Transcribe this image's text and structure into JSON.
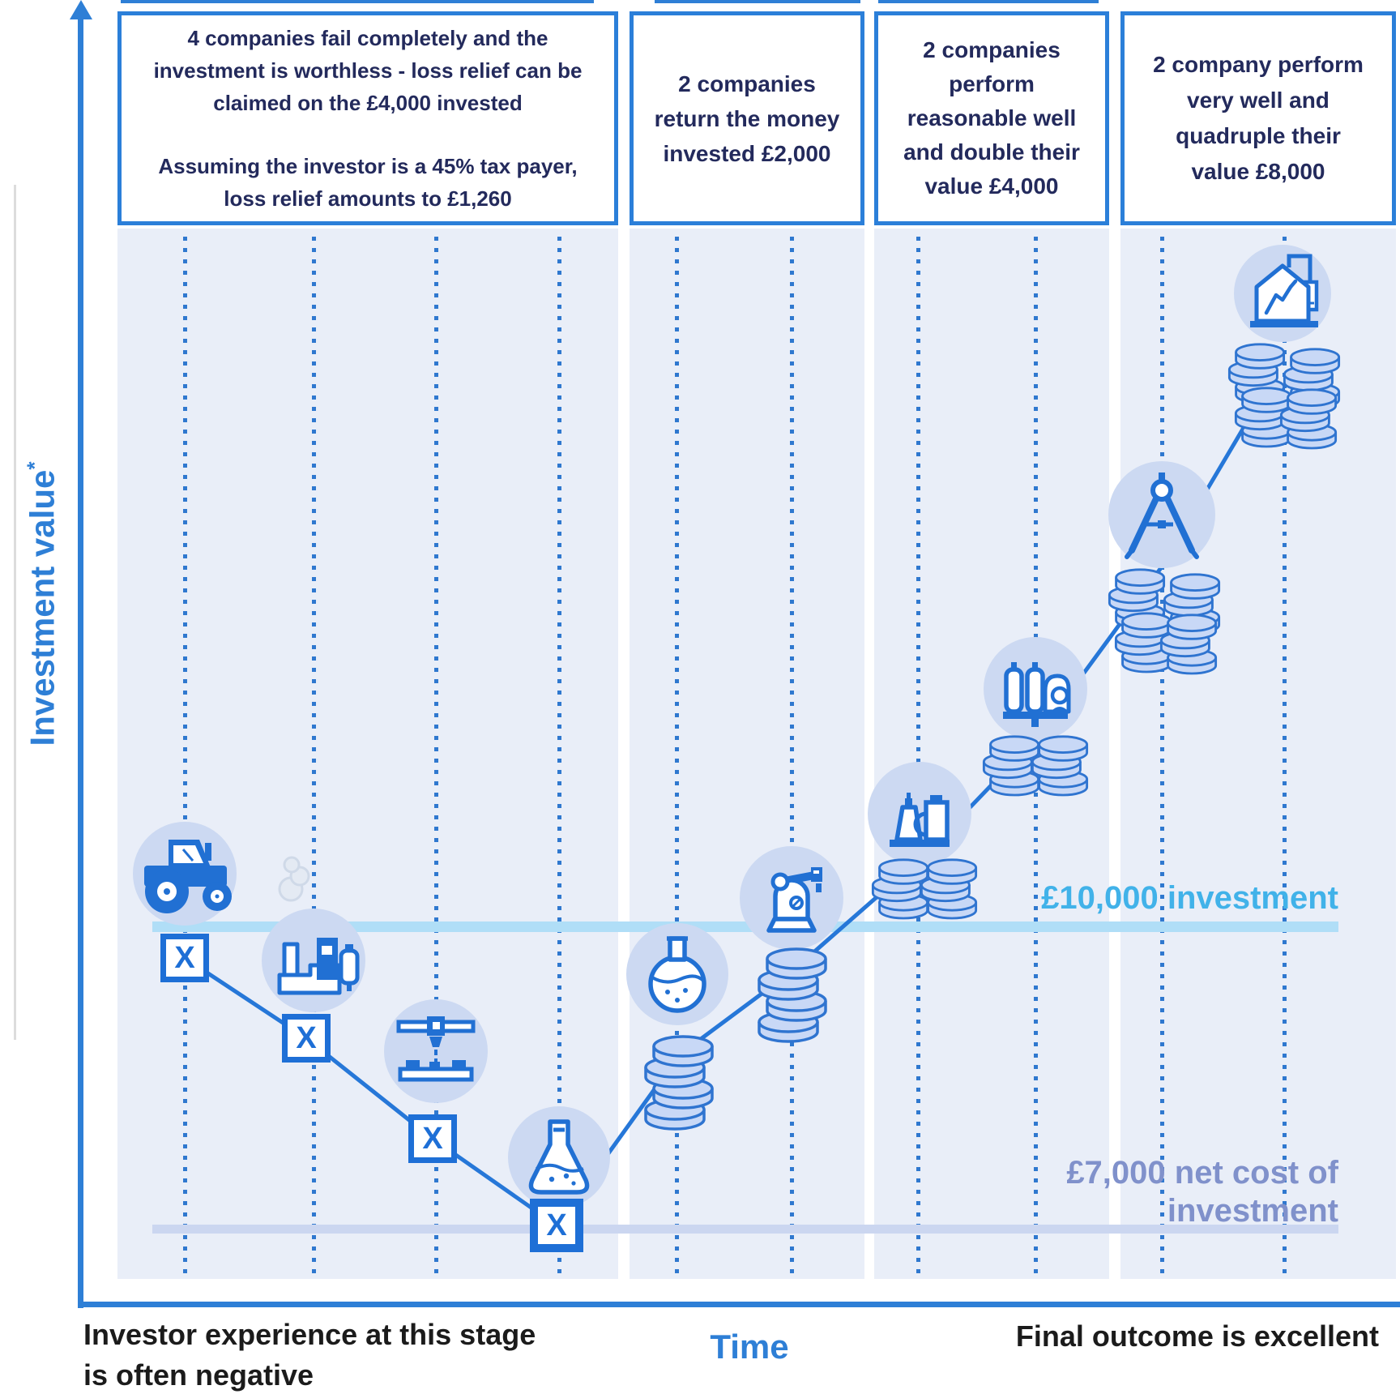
{
  "header_boxes": [
    {
      "paragraphs": [
        [
          "4 companies fail completely and the",
          "investment is worthless - loss relief can be",
          "claimed on the £4,000 invested"
        ],
        [
          "Assuming the investor is a 45% tax payer,",
          "loss relief amounts to £1,260"
        ]
      ]
    },
    {
      "paragraphs": [
        [
          "2 companies",
          "return the money",
          "invested £2,000"
        ]
      ]
    },
    {
      "paragraphs": [
        [
          "2 companies",
          "perform",
          "reasonable well",
          "and double their",
          "value £4,000"
        ]
      ]
    },
    {
      "paragraphs": [
        [
          "2 company perform",
          "very well and",
          "quadruple their",
          "value £8,000"
        ]
      ]
    }
  ],
  "axes": {
    "y_label": "Investment value",
    "y_note": "*",
    "x_label": "Time"
  },
  "reference_lines": {
    "investment": {
      "label": "£10,000 investment",
      "label_color": "#41b2e9",
      "line_color": "#b0def7"
    },
    "net_cost": {
      "label_lines": [
        "£7,000 net cost of",
        "investment"
      ],
      "label_color": "#8091cb",
      "line_color": "#cbd6f0"
    }
  },
  "captions": {
    "left_lines": [
      "Investor experience at this stage",
      "is often negative"
    ],
    "right": "Final outcome is excellent"
  },
  "fail_marker": "X",
  "stages": [
    {
      "company_icons": [
        "tractor-icon",
        "factory-icon",
        "3d-printer-icon",
        "erlenmeyer-flask-icon"
      ],
      "failed": 4
    },
    {
      "company_icons": [
        "round-flask-icon",
        "robot-arm-icon"
      ]
    },
    {
      "company_icons": [
        "cosmetics-bottles-icon",
        "lab-vessels-icon"
      ]
    },
    {
      "company_icons": [
        "drafting-compass-icon",
        "factory-growth-icon"
      ]
    }
  ],
  "colors": {
    "accent_blue": "#2170d3",
    "box_border": "#2b7fd9",
    "navy_text": "#232a5c",
    "band_fill": "#e9eef8",
    "icon_circle": "#ccd9f2",
    "coin_fill": "#c8d8f6",
    "coin_stroke": "#2f74d0",
    "curve": "#2677d8",
    "axis_blue": "#2e7fd6"
  }
}
